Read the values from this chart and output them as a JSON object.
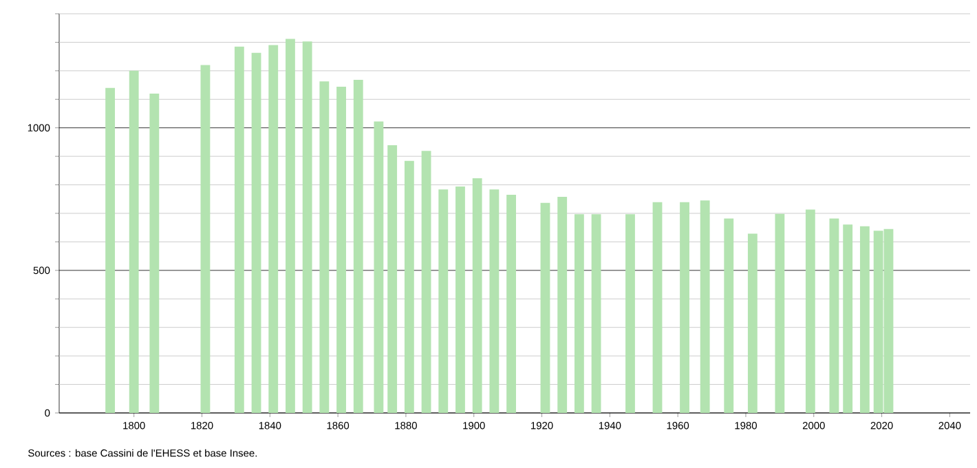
{
  "chart_data": {
    "type": "bar",
    "x": [
      1793,
      1800,
      1806,
      1821,
      1831,
      1836,
      1841,
      1846,
      1851,
      1856,
      1861,
      1866,
      1872,
      1876,
      1881,
      1886,
      1891,
      1896,
      1901,
      1906,
      1911,
      1921,
      1926,
      1931,
      1936,
      1946,
      1954,
      1962,
      1968,
      1975,
      1982,
      1990,
      1999,
      2006,
      2010,
      2015,
      2019,
      2022
    ],
    "values": [
      1140,
      1200,
      1120,
      1220,
      1285,
      1263,
      1290,
      1312,
      1303,
      1163,
      1144,
      1168,
      1022,
      939,
      884,
      919,
      784,
      794,
      823,
      784,
      765,
      737,
      758,
      697,
      697,
      697,
      739,
      739,
      745,
      682,
      629,
      698,
      713,
      682,
      661,
      655,
      639,
      645
    ],
    "color": "#b3e3b0",
    "xlim": [
      1778,
      2046
    ],
    "ylim": [
      0,
      1400
    ],
    "xticks": [
      1800,
      1820,
      1840,
      1860,
      1880,
      1900,
      1920,
      1940,
      1960,
      1980,
      2000,
      2020,
      2040
    ],
    "yticks": [
      0,
      {
        "value": 100,
        "label": null
      },
      {
        "value": 200,
        "label": null
      },
      {
        "value": 300,
        "label": null
      },
      {
        "value": 400,
        "label": null
      },
      500,
      {
        "value": 600,
        "label": null
      },
      {
        "value": 700,
        "label": null
      },
      {
        "value": 800,
        "label": null
      },
      {
        "value": 900,
        "label": null
      },
      1000,
      {
        "value": 1100,
        "label": null
      },
      {
        "value": 1200,
        "label": null
      },
      {
        "value": 1300,
        "label": null
      },
      {
        "value": 1400,
        "label": null
      }
    ],
    "grid": "y",
    "annotations": [
      "Sources : base Cassini de l'EHESS et base Insee."
    ]
  }
}
